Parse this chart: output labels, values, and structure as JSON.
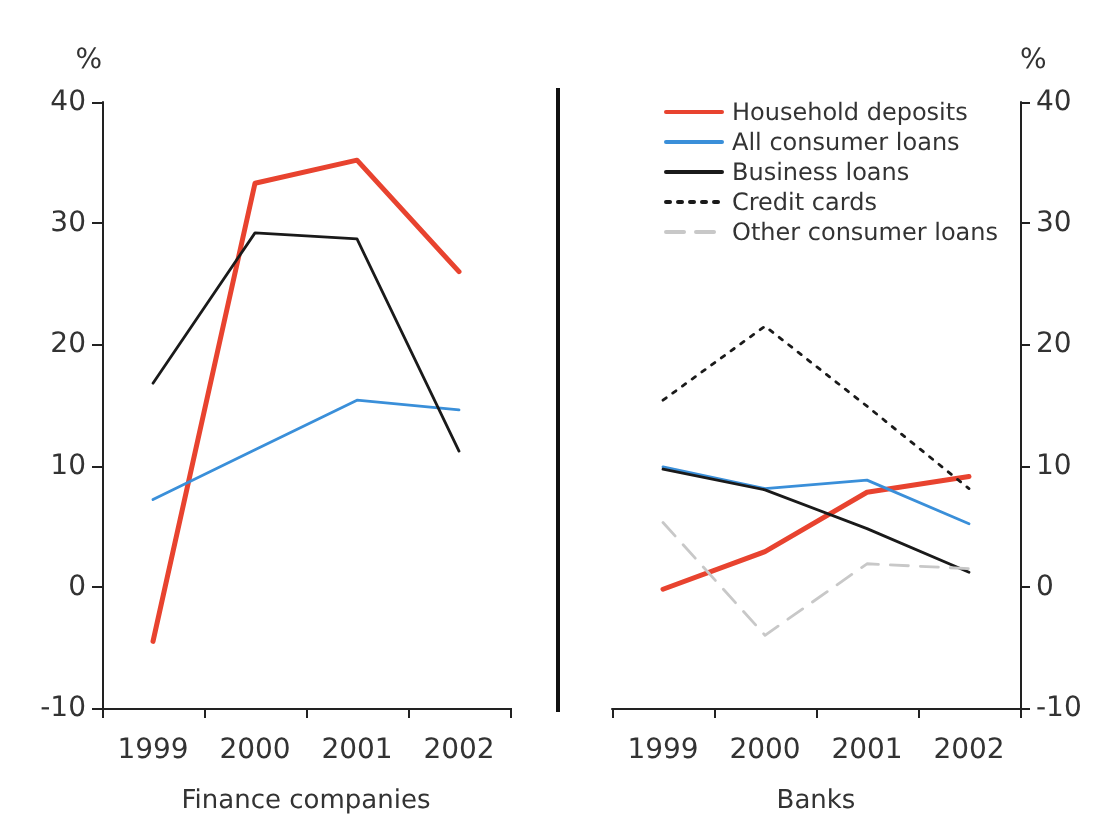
{
  "chart_data": [
    {
      "type": "line",
      "xlabel": "Finance companies",
      "ylabel": "%",
      "categories": [
        "1999",
        "2000",
        "2001",
        "2002"
      ],
      "ylim": [
        -10,
        40
      ],
      "yticks": [
        -10,
        0,
        10,
        20,
        30,
        40
      ],
      "grid": false,
      "legend": false,
      "marker": "none",
      "series": [
        {
          "color": "#e8432f",
          "line_style": "solid",
          "values": [
            -4.5,
            33.3,
            35.2,
            26.0
          ]
        },
        {
          "color": "#3a8fd9",
          "line_style": "solid",
          "values": [
            7.2,
            11.3,
            15.4,
            14.6
          ]
        },
        {
          "color": "#1a1a1a",
          "line_style": "solid",
          "values": [
            16.8,
            29.2,
            28.7,
            11.2
          ]
        }
      ]
    },
    {
      "type": "line",
      "xlabel": "Banks",
      "y2label": "%",
      "categories": [
        "1999",
        "2000",
        "2001",
        "2002"
      ],
      "y2lim": [
        -10,
        40
      ],
      "y2ticks": [
        -10,
        0,
        10,
        20,
        30,
        40
      ],
      "grid": false,
      "legend": "top right",
      "marker": "none",
      "series": [
        {
          "name": "Household deposits",
          "axis": "y2",
          "color": "#e8432f",
          "line_style": "solid",
          "values": [
            -0.2,
            2.9,
            7.8,
            9.1
          ]
        },
        {
          "name": "All consumer loans",
          "axis": "y2",
          "color": "#3a8fd9",
          "line_style": "solid",
          "values": [
            9.9,
            8.1,
            8.8,
            5.2
          ]
        },
        {
          "name": "Business loans",
          "axis": "y2",
          "color": "#1a1a1a",
          "line_style": "solid",
          "values": [
            9.7,
            8.0,
            4.8,
            1.2
          ]
        },
        {
          "name": "Credit cards",
          "axis": "y2",
          "color": "#1a1a1a",
          "line_style": "dotted",
          "values": [
            15.4,
            21.5,
            14.9,
            8.1
          ]
        },
        {
          "name": "Other consumer loans",
          "axis": "y2",
          "color": "#c8c8c8",
          "line_style": "dashed",
          "values": [
            5.3,
            -4.0,
            1.9,
            1.5
          ]
        }
      ]
    }
  ]
}
